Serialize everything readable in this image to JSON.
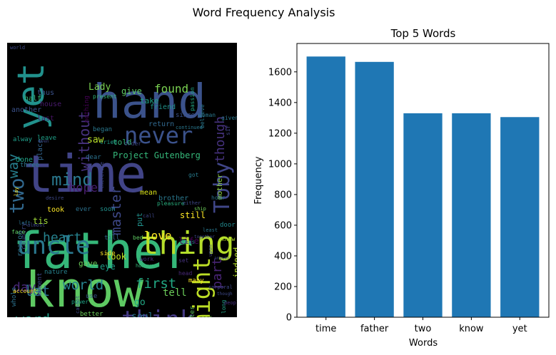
{
  "figure": {
    "title": "Word Frequency Analysis"
  },
  "wordcloud": {
    "words": [
      {
        "text": "father",
        "color": "#35b779"
      },
      {
        "text": "time",
        "color": "#414487"
      },
      {
        "text": "know",
        "color": "#5ec962"
      },
      {
        "text": "hand",
        "color": "#3b528b"
      },
      {
        "text": "yet",
        "color": "#21918c"
      },
      {
        "text": "thing",
        "color": "#b5de2b"
      },
      {
        "text": "uncle",
        "color": "#2a788e"
      },
      {
        "text": "never",
        "color": "#3b528b"
      },
      {
        "text": "thought",
        "color": "#2a788e"
      },
      {
        "text": "think",
        "color": "#443983"
      },
      {
        "text": "might",
        "color": "#bddf26"
      },
      {
        "text": "Toby",
        "color": "#404688"
      },
      {
        "text": "two",
        "color": "#31688e"
      },
      {
        "text": "mind",
        "color": "#2a788e"
      },
      {
        "text": "heart",
        "color": "#26828e"
      },
      {
        "text": "word",
        "color": "#1f9e89"
      },
      {
        "text": "let",
        "color": "#2c728e"
      },
      {
        "text": "day",
        "color": "#482878"
      },
      {
        "text": "world",
        "color": "#26828e"
      },
      {
        "text": "first",
        "color": "#22a884"
      },
      {
        "text": "love",
        "color": "#fde725"
      },
      {
        "text": "found",
        "color": "#7ad151"
      },
      {
        "text": "way",
        "color": "#277f8e"
      },
      {
        "text": "master",
        "color": "#3e4989"
      },
      {
        "text": "without",
        "color": "#46327e"
      },
      {
        "text": "hope",
        "color": "#481f70"
      },
      {
        "text": "Project Gutenberg",
        "color": "#35b779"
      },
      {
        "text": "though",
        "color": "#46327e"
      },
      {
        "text": "part",
        "color": "#482475"
      },
      {
        "text": "indeed",
        "color": "#b5de2b"
      },
      {
        "text": "life",
        "color": "#440154"
      },
      {
        "text": "put",
        "color": "#21918c"
      },
      {
        "text": "look",
        "color": "#c2df23"
      },
      {
        "text": "eye",
        "color": "#1f9e89"
      },
      {
        "text": "tell",
        "color": "#6ccd5a"
      },
      {
        "text": "go",
        "color": "#22a884"
      },
      {
        "text": "soul",
        "color": "#2a788e"
      },
      {
        "text": "came",
        "color": "#86d549"
      },
      {
        "text": "honour",
        "color": "#3e4989"
      },
      {
        "text": "us",
        "color": "#355f8d"
      },
      {
        "text": "Lady",
        "color": "#7ad151"
      },
      {
        "text": "give",
        "color": "#5ec962"
      },
      {
        "text": "take",
        "color": "#20a386"
      },
      {
        "text": "saw",
        "color": "#b8de29"
      },
      {
        "text": "told",
        "color": "#35b779"
      },
      {
        "text": "mean",
        "color": "#d8e219"
      },
      {
        "text": "still",
        "color": "#fde725"
      },
      {
        "text": "brother",
        "color": "#2a788e"
      },
      {
        "text": "mother",
        "color": "#90d743"
      },
      {
        "text": "gave",
        "color": "#6ccd5a"
      },
      {
        "text": "reason",
        "color": "#2c728e"
      },
      {
        "text": "tis",
        "color": "#a0da39"
      },
      {
        "text": "another",
        "color": "#3b528b"
      },
      {
        "text": "done",
        "color": "#20a386"
      },
      {
        "text": "place",
        "color": "#32648e"
      },
      {
        "text": "house",
        "color": "#481a6c"
      },
      {
        "text": "last",
        "color": "#471365"
      },
      {
        "text": "half",
        "color": "#35b779"
      },
      {
        "text": "alway",
        "color": "#1f9e89"
      },
      {
        "text": "leave",
        "color": "#1fa188"
      },
      {
        "text": "three",
        "color": "#2a788e"
      },
      {
        "text": "took",
        "color": "#fde725"
      },
      {
        "text": "ever",
        "color": "#2c728e"
      },
      {
        "text": "soon",
        "color": "#21918c"
      },
      {
        "text": "till",
        "color": "#31688e"
      },
      {
        "text": "side",
        "color": "#fde725"
      },
      {
        "text": "nature",
        "color": "#26828e"
      },
      {
        "text": "moment",
        "color": "#3e4989"
      },
      {
        "text": "country",
        "color": "#3e4989"
      },
      {
        "text": "night",
        "color": "#482878"
      },
      {
        "text": "whole",
        "color": "#2c728e"
      },
      {
        "text": "Trim",
        "color": "#35b779"
      },
      {
        "text": "Mrs Jewkes",
        "color": "#a0da39"
      },
      {
        "text": "better",
        "color": "#6ccd5a"
      },
      {
        "text": "brought",
        "color": "#6ccd5a"
      },
      {
        "text": "find",
        "color": "#1f9e89"
      },
      {
        "text": "wish",
        "color": "#29af7f"
      },
      {
        "text": "fear",
        "color": "#b5de2b"
      },
      {
        "text": "many",
        "color": "#fde725"
      },
      {
        "text": "head",
        "color": "#482878"
      },
      {
        "text": "long",
        "color": "#20a386"
      },
      {
        "text": "end",
        "color": "#7ad151"
      },
      {
        "text": "letter",
        "color": "#5ec962"
      },
      {
        "text": "person",
        "color": "#29af7f"
      },
      {
        "text": "people",
        "color": "#46327e"
      },
      {
        "text": "door",
        "color": "#23898e"
      },
      {
        "text": "knew",
        "color": "#b5de2b"
      },
      {
        "text": "hour",
        "color": "#2c728e"
      },
      {
        "text": "got",
        "color": "#287c8e"
      },
      {
        "text": "pleasure",
        "color": "#29af7f"
      },
      {
        "text": "friend",
        "color": "#21918c"
      },
      {
        "text": "return",
        "color": "#31688e"
      },
      {
        "text": "since",
        "color": "#3b528b"
      },
      {
        "text": "passion",
        "color": "#22a884"
      },
      {
        "text": "dear",
        "color": "#2c728e"
      },
      {
        "text": "order",
        "color": "#3e4989"
      },
      {
        "text": "nothing",
        "color": "#440154"
      },
      {
        "text": "present",
        "color": "#35b779"
      },
      {
        "text": "began",
        "color": "#2a788e"
      },
      {
        "text": "cried",
        "color": "#1f9e89"
      },
      {
        "text": "thus",
        "color": "#3b528b"
      },
      {
        "text": "sir",
        "color": "#414487"
      },
      {
        "text": "believe",
        "color": "#2a788e"
      },
      {
        "text": "woman",
        "color": "#2a788e"
      },
      {
        "text": "given",
        "color": "#2a788e"
      },
      {
        "text": "call",
        "color": "#3e4989"
      },
      {
        "text": "ship",
        "color": "#6ccd5a"
      },
      {
        "text": "least",
        "color": "#2a788e"
      },
      {
        "text": "bed",
        "color": "#5ec962"
      },
      {
        "text": "less",
        "color": "#2a788e"
      },
      {
        "text": "work",
        "color": "#472f7d"
      },
      {
        "text": "however",
        "color": "#35b779"
      },
      {
        "text": "set",
        "color": "#46327e"
      },
      {
        "text": "use",
        "color": "#3b528b"
      },
      {
        "text": "power",
        "color": "#20a386"
      },
      {
        "text": "poor",
        "color": "#22a884"
      },
      {
        "text": "toward",
        "color": "#3e4989"
      },
      {
        "text": "back",
        "color": "#1f9e89"
      },
      {
        "text": "replied",
        "color": "#2a788e"
      },
      {
        "text": "taken",
        "color": "#2a788e"
      },
      {
        "text": "desire",
        "color": "#3e4989"
      },
      {
        "text": "account",
        "color": "#fde725"
      },
      {
        "text": "face",
        "color": "#5ec962"
      },
      {
        "text": "left",
        "color": "#2c728e"
      },
      {
        "text": "almost",
        "color": "#3e4989"
      },
      {
        "text": "even",
        "color": "#3e4989"
      },
      {
        "text": "lay",
        "color": "#fde725"
      },
      {
        "text": "virtue",
        "color": "#3e4989"
      },
      {
        "text": "therefore",
        "color": "#3e4989"
      },
      {
        "text": "occasion",
        "color": "#3e4989"
      },
      {
        "text": "continued",
        "color": "#2a788e"
      },
      {
        "text": "either",
        "color": "#3e4989"
      },
      {
        "text": "body",
        "color": "#3e4989"
      },
      {
        "text": "heard",
        "color": "#2a788e"
      },
      {
        "text": "cannot",
        "color": "#3e4989"
      },
      {
        "text": "corporal",
        "color": "#3e4989"
      },
      {
        "text": "answer",
        "color": "#3e4989"
      },
      {
        "text": "together",
        "color": "#3e4989"
      },
      {
        "text": "upon",
        "color": "#3e4989"
      },
      {
        "text": "though",
        "color": "#3e4989"
      },
      {
        "text": "world",
        "color": "#3e4989"
      }
    ]
  },
  "chart_data": {
    "type": "bar",
    "title": "Top 5 Words",
    "xlabel": "Words",
    "ylabel": "Frequency",
    "categories": [
      "time",
      "father",
      "two",
      "know",
      "yet"
    ],
    "values": [
      1700,
      1665,
      1330,
      1330,
      1305
    ],
    "ylim": [
      0,
      1785
    ],
    "yticks": [
      0,
      200,
      400,
      600,
      800,
      1000,
      1200,
      1400,
      1600
    ],
    "color": "#1f77b4",
    "grid": false
  }
}
